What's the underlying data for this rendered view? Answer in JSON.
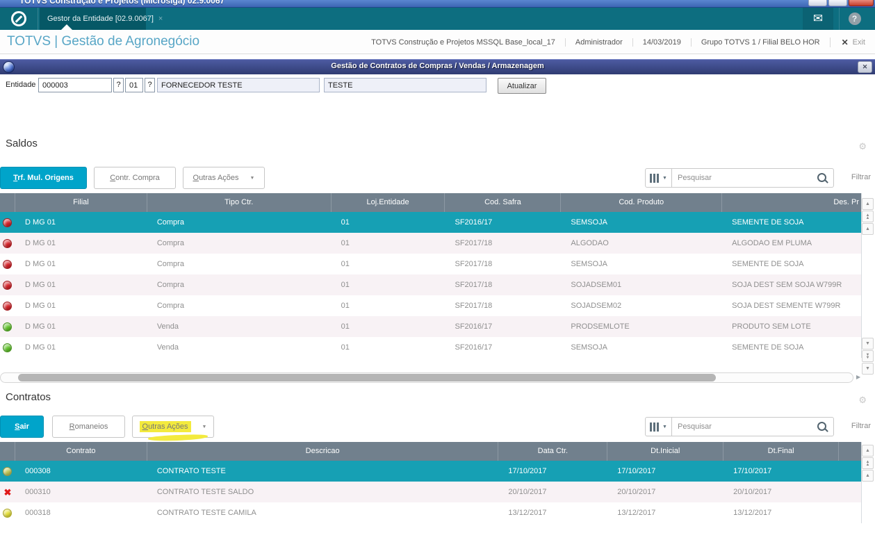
{
  "window": {
    "title": "TOTVS Construção e Projetos (Microsiga) 02.9.0067"
  },
  "app_bar": {
    "tab_label": "Gestor da Entidade [02.9.0067]",
    "tab_close": "×",
    "help_label": "?"
  },
  "header": {
    "brand": "TOTVS | Gestão de Agronegócio",
    "meta": [
      "TOTVS Construção e Projetos MSSQL Base_local_17",
      "Administrador",
      "14/03/2019",
      "Grupo TOTVS 1 / Filial BELO HOR"
    ],
    "exit_x": "✕",
    "exit_label": "Exit"
  },
  "panel": {
    "title": "Gestão de Contratos de Compras / Vendas / Armazenagem",
    "close_label": "✕"
  },
  "form": {
    "label": "Entidade",
    "code": "000003",
    "lookup1": "?",
    "store": "01",
    "lookup2": "?",
    "name": "FORNECEDOR TESTE",
    "nickname": "TESTE",
    "update_button": "Atualizar"
  },
  "saldos": {
    "title": "Saldos",
    "buttons": [
      {
        "label": "Trf. Mul. Origens",
        "primary": true
      },
      {
        "label": "Contr. Compra"
      },
      {
        "label": "Outras Ações",
        "caret": true
      }
    ],
    "search_placeholder": "Pesquisar",
    "filter_label": "Filtrar",
    "columns": [
      "",
      "Filial",
      "Tipo Ctr.",
      "Loj.Entidade",
      "Cod. Safra",
      "Cod. Produto",
      "Des. Pr"
    ],
    "rows": [
      {
        "icon": "red-ball",
        "selected": true,
        "cells": [
          "D MG 01",
          "Compra",
          "01",
          "SF2016/17",
          "SEMSOJA",
          "SEMENTE DE SOJA"
        ]
      },
      {
        "icon": "red-ball",
        "cells": [
          "D MG 01",
          "Compra",
          "01",
          "SF2017/18",
          "ALGODAO",
          "ALGODAO EM PLUMA"
        ]
      },
      {
        "icon": "red-ball",
        "cells": [
          "D MG 01",
          "Compra",
          "01",
          "SF2017/18",
          "SEMSOJA",
          "SEMENTE DE SOJA"
        ]
      },
      {
        "icon": "red-ball",
        "cells": [
          "D MG 01",
          "Compra",
          "01",
          "SF2017/18",
          "SOJADSEM01",
          "SOJA DEST SEM SOJA W799R"
        ]
      },
      {
        "icon": "red-ball",
        "cells": [
          "D MG 01",
          "Compra",
          "01",
          "SF2017/18",
          "SOJADSEM02",
          "SOJA DEST SEMENTE W799R"
        ]
      },
      {
        "icon": "green-ball",
        "cells": [
          "D MG 01",
          "Venda",
          "01",
          "SF2016/17",
          "PRODSEMLOTE",
          "PRODUTO SEM LOTE"
        ]
      },
      {
        "icon": "green-ball",
        "cells": [
          "D MG 01",
          "Venda",
          "01",
          "SF2016/17",
          "SEMSOJA",
          "SEMENTE DE SOJA"
        ]
      }
    ]
  },
  "contratos": {
    "title": "Contratos",
    "buttons": [
      {
        "label": "Sair",
        "primary": true
      },
      {
        "label": "Romaneios"
      },
      {
        "label": "Outras Ações",
        "caret": true,
        "highlight": true
      }
    ],
    "search_placeholder": "Pesquisar",
    "filter_label": "Filtrar",
    "columns": [
      "",
      "Contrato",
      "Descricao",
      "Data Ctr.",
      "Dt.Inicial",
      "Dt.Final",
      ""
    ],
    "rows": [
      {
        "icon": "olive-ball",
        "selected": true,
        "cells": [
          "000308",
          "CONTRATO TESTE",
          "17/10/2017",
          "17/10/2017",
          "17/10/2017",
          ""
        ]
      },
      {
        "icon": "red-x",
        "cells": [
          "000310",
          "CONTRATO TESTE SALDO",
          "20/10/2017",
          "20/10/2017",
          "20/10/2017",
          ""
        ]
      },
      {
        "icon": "yellow-ball",
        "cells": [
          "000318",
          "CONTRATO TESTE CAMILA",
          "13/12/2017",
          "13/12/2017",
          "13/12/2017",
          ""
        ]
      }
    ]
  },
  "colors": {
    "accent": "#00a4ca",
    "teal_bar": "#0d6e80",
    "selected_row": "#16a0b4",
    "grid_header": "#71808d",
    "highlight": "#f3ea3d"
  }
}
